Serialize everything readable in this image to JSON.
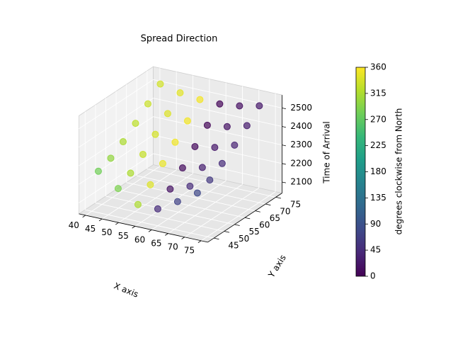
{
  "chart_data": {
    "type": "scatter3d",
    "title": "Spread Direction",
    "xlabel": "X axis",
    "ylabel": "Y axis",
    "zlabel": "Time of Arrival",
    "xlim": [
      38,
      77
    ],
    "ylim": [
      42,
      78
    ],
    "zlim": [
      2040,
      2570
    ],
    "xticks": [
      40,
      45,
      50,
      55,
      60,
      65,
      70,
      75
    ],
    "yticks": [
      45,
      50,
      55,
      60,
      65,
      70,
      75
    ],
    "zticks": [
      2100,
      2200,
      2300,
      2400,
      2500
    ],
    "colormap": "viridis",
    "colorbar": {
      "label": "degrees clockwise from North",
      "lim": [
        0,
        360
      ],
      "ticks": [
        0,
        45,
        90,
        135,
        180,
        225,
        270,
        315,
        360
      ]
    },
    "x": [
      42,
      48,
      54,
      60,
      66,
      72,
      42,
      48,
      54,
      60,
      66,
      72,
      42,
      48,
      54,
      60,
      66,
      72,
      42,
      48,
      54,
      60,
      66,
      72,
      42,
      48,
      54,
      60,
      66,
      72,
      42,
      48,
      54,
      60,
      66,
      72
    ],
    "y": [
      45,
      45,
      45,
      45,
      45,
      45,
      51,
      51,
      51,
      51,
      51,
      51,
      57,
      57,
      57,
      57,
      57,
      57,
      63,
      63,
      63,
      63,
      63,
      63,
      69,
      69,
      69,
      69,
      69,
      69,
      75,
      75,
      75,
      75,
      75,
      75
    ],
    "z": [
      2264,
      2194,
      2131,
      2131,
      2194,
      2264,
      2290,
      2233,
      2194,
      2194,
      2233,
      2290,
      2335,
      2290,
      2264,
      2264,
      2290,
      2335,
      2390,
      2354,
      2335,
      2335,
      2354,
      2390,
      2451,
      2422,
      2406,
      2406,
      2422,
      2451,
      2514,
      2490,
      2477,
      2477,
      2490,
      2514
    ],
    "c": [
      281,
      288,
      315,
      45,
      72,
      79,
      301,
      315,
      342,
      18,
      45,
      59,
      315,
      329,
      349,
      11,
      31,
      45,
      324,
      337,
      352,
      8,
      23,
      36,
      331,
      342,
      354,
      6,
      18,
      29,
      336,
      345,
      355,
      5,
      15,
      24
    ]
  }
}
